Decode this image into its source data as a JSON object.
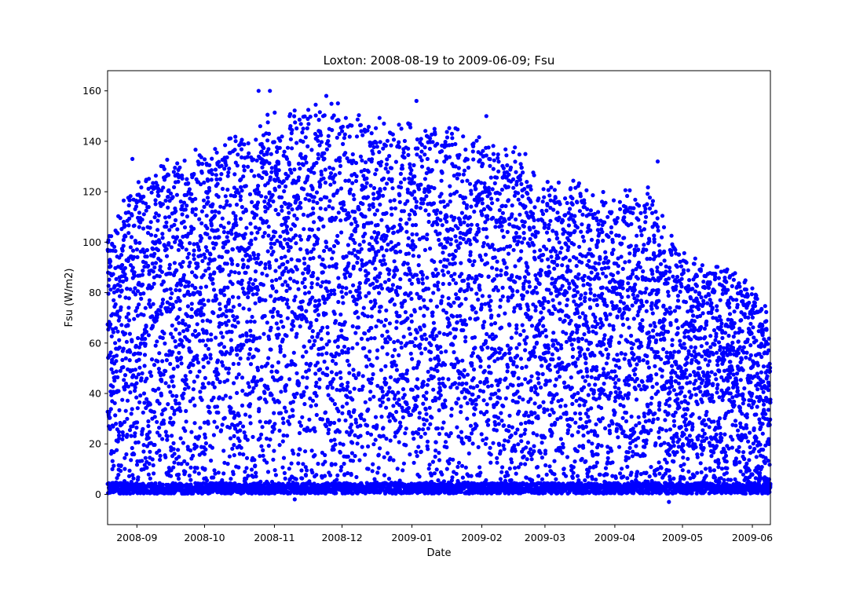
{
  "chart_data": {
    "type": "scatter",
    "title": "Loxton: 2008-08-19 to 2009-06-09; Fsu",
    "xlabel": "Date",
    "ylabel": "Fsu (W/m2)",
    "x_range": [
      "2008-08-19",
      "2009-06-09"
    ],
    "xlim": [
      "2008-08-19",
      "2009-06-09"
    ],
    "ylim": [
      -12,
      168
    ],
    "x_ticks": [
      "2008-09",
      "2008-10",
      "2008-11",
      "2008-12",
      "2009-01",
      "2009-02",
      "2009-03",
      "2009-04",
      "2009-05",
      "2009-06"
    ],
    "y_ticks": [
      0,
      20,
      40,
      60,
      80,
      100,
      120,
      140,
      160
    ],
    "marker_color": "#0000ff",
    "grid": false,
    "series": [
      {
        "description_of_distribution": "half-hourly values; nighttime cluster near 0 to 5 W/m2; daytime values scattered up to a seasonal envelope",
        "upper_envelope": [
          {
            "date": "2008-08-19",
            "y": 110
          },
          {
            "date": "2008-09-01",
            "y": 125
          },
          {
            "date": "2008-09-15",
            "y": 135
          },
          {
            "date": "2008-10-01",
            "y": 140
          },
          {
            "date": "2008-10-15",
            "y": 145
          },
          {
            "date": "2008-11-01",
            "y": 152
          },
          {
            "date": "2008-11-15",
            "y": 157
          },
          {
            "date": "2008-12-01",
            "y": 157
          },
          {
            "date": "2008-12-15",
            "y": 152
          },
          {
            "date": "2009-01-01",
            "y": 153
          },
          {
            "date": "2009-01-15",
            "y": 150
          },
          {
            "date": "2009-02-01",
            "y": 145
          },
          {
            "date": "2009-02-15",
            "y": 140
          },
          {
            "date": "2009-03-01",
            "y": 130
          },
          {
            "date": "2009-03-15",
            "y": 125
          },
          {
            "date": "2009-04-01",
            "y": 120
          },
          {
            "date": "2009-04-15",
            "y": 125
          },
          {
            "date": "2009-05-01",
            "y": 100
          },
          {
            "date": "2009-05-15",
            "y": 95
          },
          {
            "date": "2009-06-01",
            "y": 85
          },
          {
            "date": "2009-06-09",
            "y": 72
          }
        ],
        "notable_points": [
          {
            "date": "2008-10-25",
            "y": 160
          },
          {
            "date": "2008-10-30",
            "y": 160
          },
          {
            "date": "2008-11-24",
            "y": 158
          },
          {
            "date": "2009-01-03",
            "y": 156
          },
          {
            "date": "2009-02-03",
            "y": 150
          },
          {
            "date": "2009-04-20",
            "y": 132
          },
          {
            "date": "2008-08-30",
            "y": 133
          },
          {
            "date": "2008-11-10",
            "y": -2
          },
          {
            "date": "2009-04-25",
            "y": -3
          }
        ]
      }
    ]
  }
}
